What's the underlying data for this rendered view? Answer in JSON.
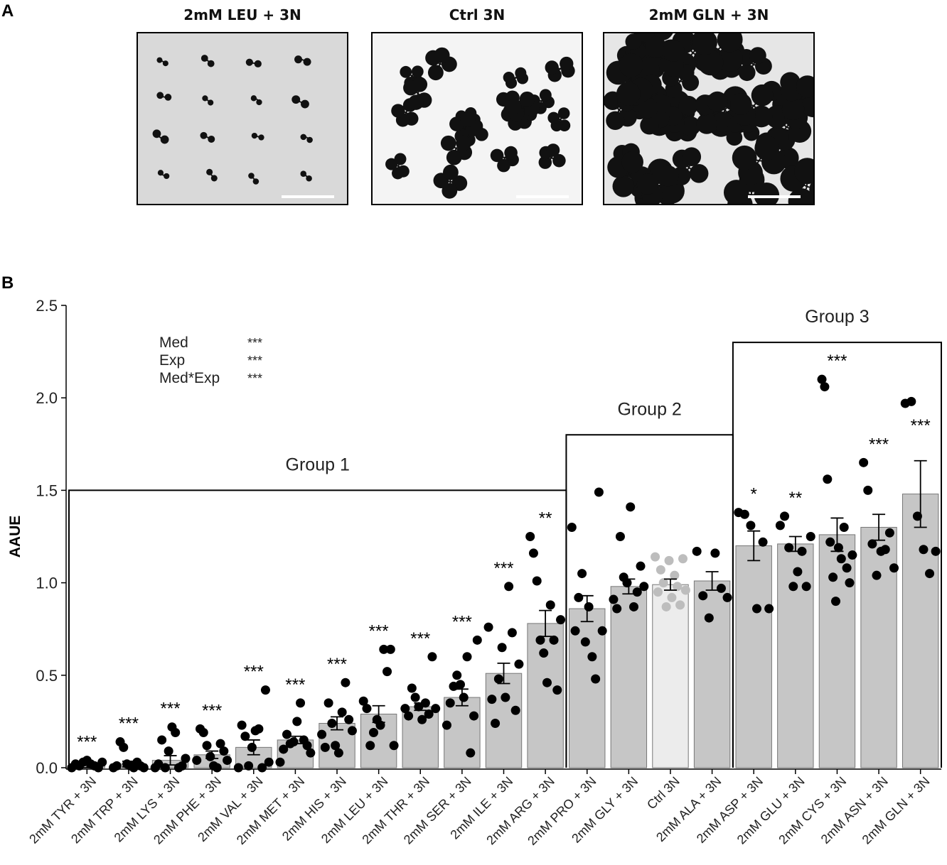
{
  "panel_a": {
    "label": "A",
    "photos": [
      {
        "title": "2mM LEU + 3N",
        "background": "#d9d9d9",
        "plant_size": "small"
      },
      {
        "title": "Ctrl 3N",
        "background": "#f4f4f4",
        "plant_size": "medium"
      },
      {
        "title": "2mM GLN + 3N",
        "background": "#e6e6e6",
        "plant_size": "large"
      }
    ]
  },
  "panel_b": {
    "label": "B"
  },
  "colors": {
    "bar": "#c6c6c6",
    "bar_ctrl": "#ececec",
    "dot": "#000000",
    "dot_ctrl": "#bdbdbd",
    "axis": "#000000"
  },
  "chart_data": {
    "type": "bar",
    "ylabel": "AAUE",
    "ylim": [
      0,
      2.5
    ],
    "yticks": [
      "0.0",
      "0.5",
      "1.0",
      "1.5",
      "2.0",
      "2.5"
    ],
    "categories": [
      "2mM TYR + 3N",
      "2mM TRP + 3N",
      "2mM LYS + 3N",
      "2mM PHE + 3N",
      "2mM VAL + 3N",
      "2mM MET + 3N",
      "2mM HIS + 3N",
      "2mM LEU + 3N",
      "2mM THR + 3N",
      "2mM SER + 3N",
      "2mM ILE + 3N",
      "2mM ARG + 3N",
      "2mM PRO + 3N",
      "2mM GLY + 3N",
      "Ctrl 3N",
      "2mM ALA + 3N",
      "2mM ASP + 3N",
      "2mM GLU + 3N",
      "2mM CYS + 3N",
      "2mM ASN + 3N",
      "2mM GLN + 3N"
    ],
    "values": [
      0.01,
      0.02,
      0.04,
      0.07,
      0.11,
      0.15,
      0.24,
      0.29,
      0.33,
      0.38,
      0.51,
      0.78,
      0.86,
      0.98,
      0.99,
      1.01,
      1.2,
      1.21,
      1.26,
      1.3,
      1.48
    ],
    "errors": [
      0.01,
      0.015,
      0.025,
      0.02,
      0.04,
      0.02,
      0.035,
      0.045,
      0.02,
      0.045,
      0.055,
      0.07,
      0.07,
      0.04,
      0.03,
      0.05,
      0.08,
      0.04,
      0.09,
      0.07,
      0.18
    ],
    "significance": [
      "***",
      "***",
      "***",
      "***",
      "***",
      "***",
      "***",
      "***",
      "***",
      "***",
      "***",
      "**",
      "",
      "",
      "",
      "",
      "*",
      "**",
      "***",
      "***",
      "***"
    ],
    "points": [
      [
        0.0,
        0.02,
        0.01,
        0.03,
        0.04,
        0.02,
        0.01,
        0.0,
        0.03
      ],
      [
        0.0,
        0.01,
        0.14,
        0.11,
        0.02,
        0.01,
        0.0,
        0.03,
        0.01,
        0.0
      ],
      [
        0.0,
        0.02,
        0.15,
        0.0,
        0.09,
        0.22,
        0.19,
        0.0,
        0.01,
        0.05
      ],
      [
        0.04,
        0.21,
        0.19,
        0.12,
        0.06,
        0.01,
        0.0,
        0.13,
        0.09,
        0.04
      ],
      [
        0.0,
        0.23,
        0.17,
        0.01,
        0.11,
        0.2,
        0.21,
        0.0,
        0.42,
        0.03
      ],
      [
        0.03,
        0.1,
        0.18,
        0.13,
        0.14,
        0.25,
        0.35,
        0.15,
        0.12,
        0.08
      ],
      [
        0.18,
        0.11,
        0.35,
        0.24,
        0.12,
        0.08,
        0.3,
        0.46,
        0.26,
        0.2
      ],
      [
        0.36,
        0.32,
        0.12,
        0.19,
        0.26,
        0.23,
        0.64,
        0.52,
        0.64,
        0.12
      ],
      [
        0.32,
        0.28,
        0.43,
        0.38,
        0.33,
        0.26,
        0.35,
        0.29,
        0.6,
        0.32
      ],
      [
        0.23,
        0.35,
        0.44,
        0.5,
        0.45,
        0.38,
        0.6,
        0.08,
        0.28,
        0.69
      ],
      [
        0.76,
        0.37,
        0.24,
        0.48,
        0.65,
        0.38,
        0.98,
        0.73,
        0.31,
        0.56
      ],
      [
        1.25,
        1.16,
        1.01,
        0.69,
        0.62,
        0.46,
        0.88,
        0.69,
        0.42,
        0.8
      ],
      [
        1.3,
        0.74,
        0.92,
        1.05,
        0.68,
        0.87,
        0.6,
        0.48,
        1.49,
        0.74
      ],
      [
        0.91,
        0.86,
        1.25,
        1.03,
        1.0,
        1.41,
        0.87,
        0.95,
        1.09,
        0.98
      ],
      [
        1.14,
        0.95,
        1.07,
        1.0,
        0.87,
        1.12,
        0.92,
        1.04,
        0.98,
        0.88,
        1.13,
        0.96
      ],
      [
        1.17,
        0.93,
        0.81,
        1.16,
        0.97,
        0.92
      ],
      [
        1.38,
        1.37,
        1.31,
        0.86,
        1.22,
        0.86
      ],
      [
        1.31,
        1.36,
        1.19,
        0.98,
        1.06,
        1.17,
        0.98,
        1.25
      ],
      [
        2.1,
        2.06,
        1.56,
        1.22,
        1.03,
        0.9,
        1.19,
        1.13,
        1.3,
        1.08,
        1.0,
        1.15
      ],
      [
        1.65,
        1.5,
        1.21,
        1.04,
        1.17,
        1.18,
        1.27,
        1.08
      ],
      [
        1.97,
        1.98,
        1.36,
        1.18,
        1.05,
        1.17
      ]
    ],
    "groups": [
      {
        "label": "Group 1",
        "start": 0,
        "end": 11,
        "height": 1.5
      },
      {
        "label": "Group 2",
        "start": 12,
        "end": 15,
        "height": 1.8
      },
      {
        "label": "Group 3",
        "start": 16,
        "end": 20,
        "height": 2.3
      }
    ],
    "stats": [
      {
        "term": "Med",
        "sig": "***"
      },
      {
        "term": "Exp",
        "sig": "***"
      },
      {
        "term": "Med*Exp",
        "sig": "***"
      }
    ],
    "grid": false
  }
}
